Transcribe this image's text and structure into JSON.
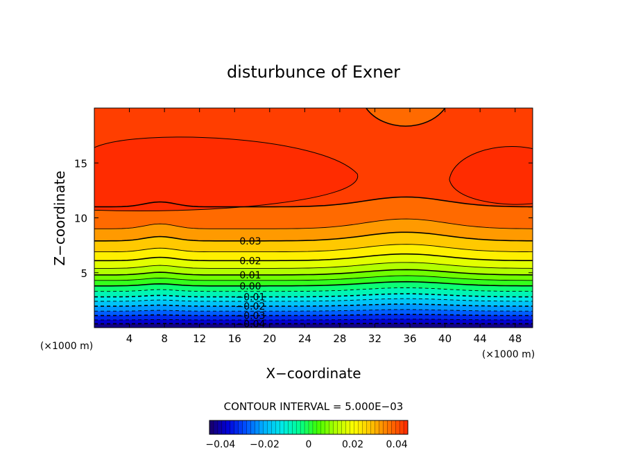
{
  "chart_data": {
    "type": "heatmap",
    "title": "disturbunce of Exner",
    "xlabel": "X−coordinate",
    "ylabel": "Z−coordinate",
    "x_unit_label": "(×1000 m)",
    "z_unit_label": "(×1000 m)",
    "x_range": [
      0,
      50
    ],
    "z_range": [
      0,
      20
    ],
    "x_ticks": [
      "4",
      "8",
      "12",
      "16",
      "20",
      "24",
      "28",
      "32",
      "36",
      "40",
      "44",
      "48"
    ],
    "z_ticks": [
      "5",
      "10",
      "15"
    ],
    "contour_interval_text": "CONTOUR INTERVAL = 5.000E−03",
    "value_range": [
      -0.045,
      0.045
    ],
    "colorbar_ticks": [
      "−0.04",
      "−0.02",
      "0",
      "0.02",
      "0.04"
    ],
    "colormap": [
      "#1a0066",
      "#0000d8",
      "#0050ff",
      "#00b0ff",
      "#00e8e8",
      "#00ff90",
      "#40ff00",
      "#b0ff00",
      "#ffff00",
      "#ffc000",
      "#ff7000",
      "#ff2800"
    ],
    "contour_labels": [
      "0.03",
      "0.02",
      "0.01",
      "0.00",
      "−0.01",
      "−0.02",
      "−0.03",
      "−0.04"
    ],
    "levels": [
      {
        "value": 0.04,
        "base_z": 11.0
      },
      {
        "value": 0.035,
        "base_z": 9.0
      },
      {
        "value": 0.03,
        "base_z": 7.9
      },
      {
        "value": 0.025,
        "base_z": 6.9
      },
      {
        "value": 0.02,
        "base_z": 6.1
      },
      {
        "value": 0.015,
        "base_z": 5.4
      },
      {
        "value": 0.01,
        "base_z": 4.8
      },
      {
        "value": 0.005,
        "base_z": 4.3
      },
      {
        "value": 0.0,
        "base_z": 3.8
      },
      {
        "value": -0.005,
        "base_z": 3.3
      },
      {
        "value": -0.01,
        "base_z": 2.8
      },
      {
        "value": -0.015,
        "base_z": 2.4
      },
      {
        "value": -0.02,
        "base_z": 1.95
      },
      {
        "value": -0.025,
        "base_z": 1.5
      },
      {
        "value": -0.03,
        "base_z": 1.1
      },
      {
        "value": -0.035,
        "base_z": 0.7
      },
      {
        "value": -0.04,
        "base_z": 0.35
      }
    ]
  }
}
